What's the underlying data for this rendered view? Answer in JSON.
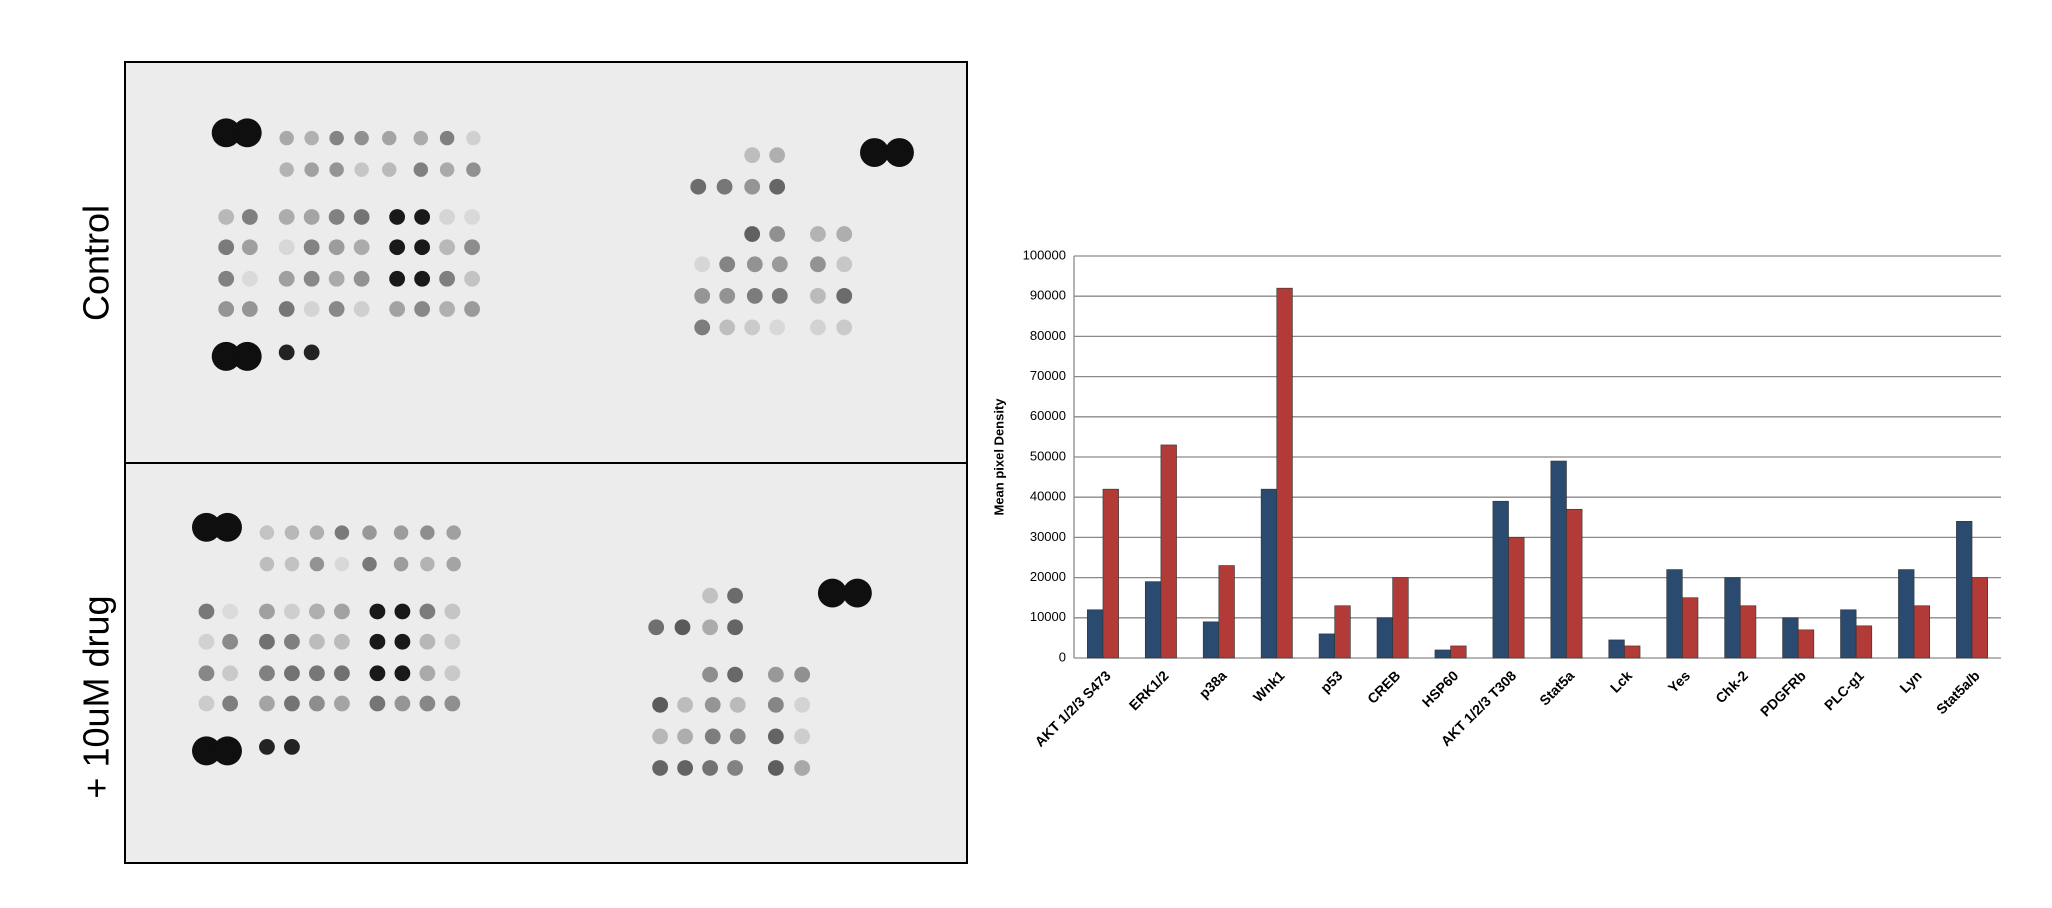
{
  "blot": {
    "labels": [
      "Control",
      "+ 10uM drug"
    ]
  },
  "chart_data": {
    "type": "bar",
    "y_label": "Mean pixel Density",
    "categories": [
      "AKT 1/2/3 S473",
      "ERK1/2",
      "p38a",
      "Wnk1",
      "p53",
      "CREB",
      "HSP60",
      "AKT 1/2/3 T308",
      "Stat5a",
      "Lck",
      "Yes",
      "Chk-2",
      "PDGFRb",
      "PLC-g1",
      "Lyn",
      "Stat5a/b"
    ],
    "series": [
      {
        "color": "#2b4a6f",
        "values": [
          12000,
          19000,
          9000,
          42000,
          6000,
          10000,
          2000,
          39000,
          49000,
          4500,
          22000,
          20000,
          10000,
          12000,
          22000,
          34000
        ]
      },
      {
        "color": "#b23b37",
        "values": [
          42000,
          53000,
          23000,
          92000,
          13000,
          20000,
          3000,
          30000,
          37000,
          3000,
          15000,
          13000,
          7000,
          8000,
          13000,
          20000
        ]
      }
    ],
    "ylim": [
      0,
      100000
    ],
    "yticks": [
      0,
      10000,
      20000,
      30000,
      40000,
      50000,
      60000,
      70000,
      80000,
      90000,
      100000
    ],
    "grid": true
  }
}
